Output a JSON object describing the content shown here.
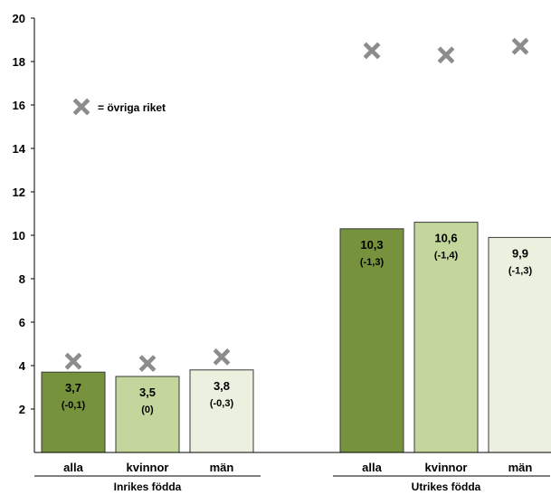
{
  "chart_data": {
    "type": "bar",
    "ylim": [
      0,
      20
    ],
    "yticks": [
      2,
      4,
      6,
      8,
      10,
      12,
      14,
      16,
      18,
      20
    ],
    "groups": [
      {
        "label": "Inrikes födda",
        "bars": [
          {
            "category": "alla",
            "value": 3.7,
            "value_label": "3,7",
            "change_label": "(-0,1)",
            "marker": 4.2,
            "color": "#76923c"
          },
          {
            "category": "kvinnor",
            "value": 3.5,
            "value_label": "3,5",
            "change_label": "(0)",
            "marker": 4.1,
            "color": "#c3d69b"
          },
          {
            "category": "män",
            "value": 3.8,
            "value_label": "3,8",
            "change_label": "(-0,3)",
            "marker": 4.4,
            "color": "#ebf1de"
          }
        ]
      },
      {
        "label": "Utrikes födda",
        "bars": [
          {
            "category": "alla",
            "value": 10.3,
            "value_label": "10,3",
            "change_label": "(-1,3)",
            "marker": 18.5,
            "color": "#76923c"
          },
          {
            "category": "kvinnor",
            "value": 10.6,
            "value_label": "10,6",
            "change_label": "(-1,4)",
            "marker": 18.3,
            "color": "#c3d69b"
          },
          {
            "category": "män",
            "value": 9.9,
            "value_label": "9,9",
            "change_label": "(-1,3)",
            "marker": 18.7,
            "color": "#ebf1de"
          }
        ]
      }
    ],
    "legend": {
      "marker_label": "= övriga riket",
      "marker_color": "#8c8c8c"
    }
  }
}
